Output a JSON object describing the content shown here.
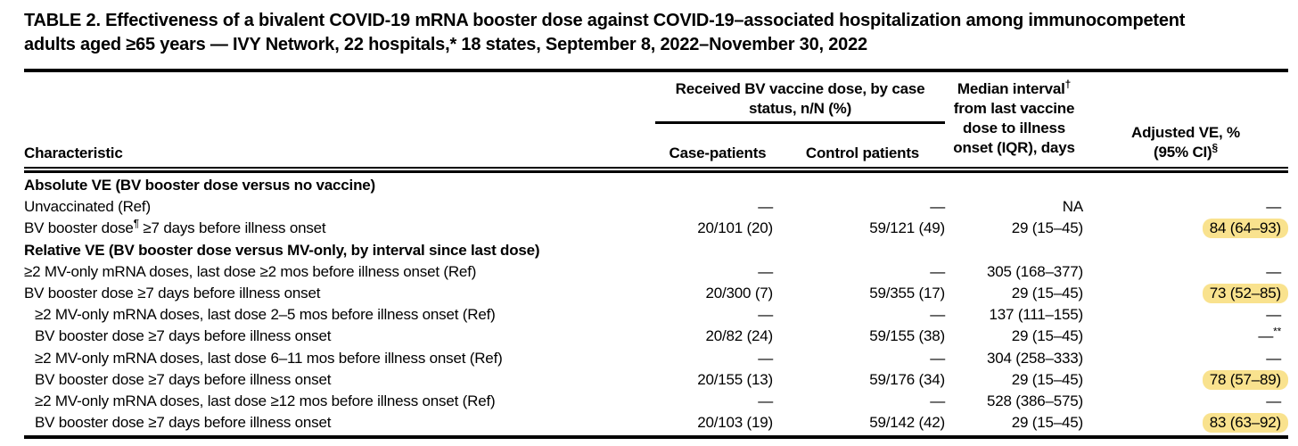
{
  "colors": {
    "text": "#000000",
    "rule": "#000000",
    "highlight": "#f9e28e"
  },
  "title": {
    "line1": "TABLE 2. Effectiveness of a bivalent COVID-19 mRNA booster dose against COVID-19–associated hospitalization among immunocompetent",
    "line2": "adults aged ≥65 years — IVY Network, 22 hospitals,* 18 states, September 8, 2022–November 30, 2022"
  },
  "table": {
    "header": {
      "characteristic": "Characteristic",
      "group": {
        "line1": "Received BV vaccine dose, by case",
        "line2": "status, n/N (%)",
        "case_label": "Case-patients",
        "control_label": "Control patients"
      },
      "median": {
        "l1": "Median interval",
        "sup": "†",
        "l2": "from last vaccine",
        "l3": "dose to illness",
        "l4": "onset (IQR), days"
      },
      "ve": {
        "l1": "Adjusted VE, %",
        "l2": "(95% CI)",
        "sup": "§"
      }
    },
    "rows": [
      {
        "type": "section",
        "label": "Absolute VE (BV booster dose versus no vaccine)"
      },
      {
        "type": "data",
        "indent": 0,
        "char": "Unvaccinated (Ref)",
        "char_sup": "",
        "char_post": "",
        "case": "—",
        "control": "—",
        "median": "NA",
        "ve": "—",
        "ve_sup": "",
        "ve_highlight": false
      },
      {
        "type": "data",
        "indent": 0,
        "char": "BV booster dose",
        "char_sup": "¶",
        "char_post": " ≥7 days before illness onset",
        "case": "20/101 (20)",
        "control": "59/121 (49)",
        "median": "29 (15–45)",
        "ve": "84 (64–93)",
        "ve_sup": "",
        "ve_highlight": true
      },
      {
        "type": "section",
        "label": "Relative VE (BV booster dose versus MV-only, by interval since last dose)"
      },
      {
        "type": "data",
        "indent": 0,
        "char": "≥2 MV-only mRNA doses, last dose ≥2 mos before illness onset (Ref)",
        "char_sup": "",
        "char_post": "",
        "case": "—",
        "control": "—",
        "median": "305 (168–377)",
        "ve": "—",
        "ve_sup": "",
        "ve_highlight": false
      },
      {
        "type": "data",
        "indent": 0,
        "char": "BV booster dose ≥7 days before illness onset",
        "char_sup": "",
        "char_post": "",
        "case": "20/300 (7)",
        "control": "59/355 (17)",
        "median": "29 (15–45)",
        "ve": "73 (52–85)",
        "ve_sup": "",
        "ve_highlight": true
      },
      {
        "type": "data",
        "indent": 1,
        "char": "≥2 MV-only mRNA doses, last dose 2–5 mos before illness onset (Ref)",
        "char_sup": "",
        "char_post": "",
        "case": "—",
        "control": "—",
        "median": "137 (111–155)",
        "ve": "—",
        "ve_sup": "",
        "ve_highlight": false
      },
      {
        "type": "data",
        "indent": 1,
        "char": "BV booster dose ≥7 days before illness onset",
        "char_sup": "",
        "char_post": "",
        "case": "20/82 (24)",
        "control": "59/155 (38)",
        "median": "29 (15–45)",
        "ve": "—",
        "ve_sup": "**",
        "ve_highlight": false
      },
      {
        "type": "data",
        "indent": 1,
        "char": "≥2 MV-only mRNA doses, last dose 6–11 mos before illness onset (Ref)",
        "char_sup": "",
        "char_post": "",
        "case": "—",
        "control": "—",
        "median": "304 (258–333)",
        "ve": "—",
        "ve_sup": "",
        "ve_highlight": false
      },
      {
        "type": "data",
        "indent": 1,
        "char": "BV booster dose ≥7 days before illness onset",
        "char_sup": "",
        "char_post": "",
        "case": "20/155 (13)",
        "control": "59/176 (34)",
        "median": "29 (15–45)",
        "ve": "78 (57–89)",
        "ve_sup": "",
        "ve_highlight": true
      },
      {
        "type": "data",
        "indent": 1,
        "char": "≥2 MV-only mRNA doses, last dose ≥12 mos before illness onset (Ref)",
        "char_sup": "",
        "char_post": "",
        "case": "—",
        "control": "—",
        "median": "528 (386–575)",
        "ve": "—",
        "ve_sup": "",
        "ve_highlight": false
      },
      {
        "type": "data",
        "indent": 1,
        "char": "BV booster dose ≥7 days before illness onset",
        "char_sup": "",
        "char_post": "",
        "case": "20/103 (19)",
        "control": "59/142 (42)",
        "median": "29 (15–45)",
        "ve": "83 (63–92)",
        "ve_sup": "",
        "ve_highlight": true
      }
    ]
  }
}
